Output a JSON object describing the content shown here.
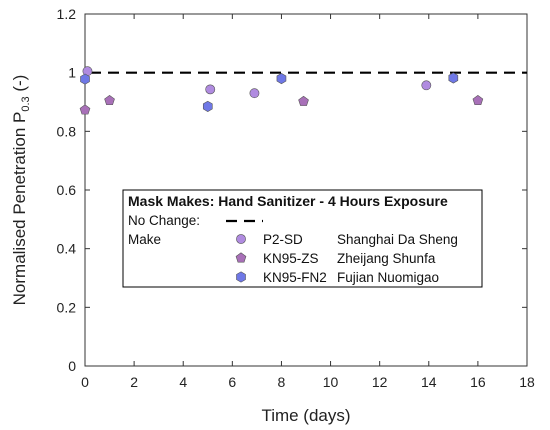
{
  "chart_data": {
    "type": "scatter",
    "xlabel": "Time (days)",
    "ylabel_main": "Normalised Penetration P",
    "ylabel_sub": "0.3",
    "ylabel_suffix": " (-)",
    "xlim": [
      0,
      18
    ],
    "ylim": [
      0,
      1.2
    ],
    "x_ticks": [
      "0",
      "2",
      "4",
      "6",
      "8",
      "10",
      "12",
      "14",
      "16",
      "18"
    ],
    "y_ticks": [
      "0",
      "0.2",
      "0.4",
      "0.6",
      "0.8",
      "1",
      "1.2"
    ],
    "grid": false,
    "reference_line": {
      "label": "No Change:",
      "y": 1.0,
      "style": "dashed",
      "color": "#000000"
    },
    "series": [
      {
        "name": "P2-SD",
        "manufacturer": "Shanghai Da Sheng",
        "marker": "circle",
        "color": "#b08be0",
        "x": [
          0.1,
          5.1,
          6.9,
          13.9
        ],
        "y": [
          1.005,
          0.943,
          0.93,
          0.957
        ]
      },
      {
        "name": "KN95-ZS",
        "manufacturer": "Zheijang Shunfa",
        "marker": "pentagon",
        "color": "#a870b8",
        "x": [
          0.0,
          1.0,
          8.9,
          16.0
        ],
        "y": [
          0.873,
          0.905,
          0.902,
          0.905
        ]
      },
      {
        "name": "KN95-FN2",
        "manufacturer": "Fujian Nuomigao",
        "marker": "hexagon",
        "color": "#6f78e6",
        "x": [
          0.0,
          5.0,
          8.0,
          15.0
        ],
        "y": [
          0.978,
          0.885,
          0.98,
          0.982
        ]
      }
    ],
    "legend": {
      "title": "Mask Makes:  Hand Sanitizer - 4 Hours Exposure",
      "no_change_label": "No Change:",
      "make_label": "Make",
      "placement": "center"
    }
  }
}
